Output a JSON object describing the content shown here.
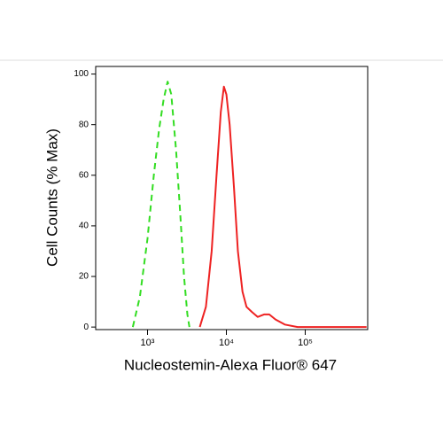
{
  "chart_data": {
    "type": "line",
    "xlabel": "Nucleostemin-Alexa Fluor® 647",
    "ylabel": "Cell Counts (% Max)",
    "xscale": "log",
    "xlim": [
      220,
      620000
    ],
    "ylim": [
      -1,
      103
    ],
    "xticks": [
      {
        "value": 1000,
        "label": "10³"
      },
      {
        "value": 10000,
        "label": "10⁴"
      },
      {
        "value": 100000,
        "label": "10⁵"
      }
    ],
    "yticks": [
      0,
      20,
      40,
      60,
      80,
      100
    ],
    "series": [
      {
        "color": "#33dd22",
        "dash": true,
        "x": [
          650,
          800,
          1000,
          1200,
          1400,
          1600,
          1800,
          2000,
          2300,
          2600,
          2900,
          3200,
          3400
        ],
        "values": [
          0,
          12,
          35,
          60,
          78,
          90,
          97,
          92,
          70,
          45,
          20,
          5,
          0
        ]
      },
      {
        "color": "#ee2222",
        "dash": false,
        "x": [
          4600,
          5500,
          6500,
          7500,
          8500,
          9300,
          10000,
          11000,
          12500,
          14000,
          16000,
          18000,
          21000,
          25000,
          30000,
          35000,
          42000,
          55000,
          80000,
          600000
        ],
        "values": [
          0,
          8,
          30,
          60,
          85,
          95,
          92,
          80,
          55,
          30,
          14,
          8,
          6,
          4,
          5,
          5,
          3,
          1,
          0,
          0
        ]
      }
    ]
  }
}
